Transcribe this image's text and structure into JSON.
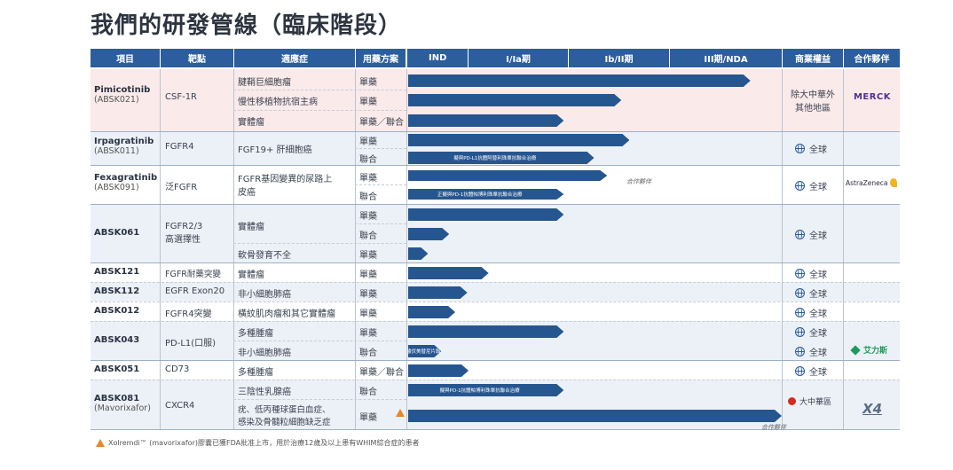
{
  "title": "我們的研發管線（臨床階段）",
  "headers": {
    "item": "項目",
    "target": "靶點",
    "indication": "適應症",
    "regimen": "用藥方案",
    "ind": "IND",
    "p1": "I/Ia期",
    "p2": "Ib/II期",
    "p3": "III期/NDA",
    "rights": "商業權益",
    "partner": "合作夥伴"
  },
  "drugs": [
    {
      "name": "Pimicotinib",
      "code": "(ABSK021)",
      "target": "CSF-1R"
    },
    {
      "name": "Irpagratinib",
      "code": "(ABSK011)",
      "target": "FGFR4"
    },
    {
      "name": "Fexagratinib",
      "code": "(ABSK091)",
      "target": "泛FGFR"
    },
    {
      "name": "ABSK061",
      "code": "",
      "target": "FGFR2/3",
      "target2": "高選擇性"
    },
    {
      "name": "ABSK121",
      "code": "",
      "target": "FGFR耐藥突變"
    },
    {
      "name": "ABSK112",
      "code": "",
      "target": "EGFR Exon20"
    },
    {
      "name": "ABSK012",
      "code": "",
      "target": "FGFR4突變"
    },
    {
      "name": "ABSK043",
      "code": "",
      "target": "PD-L1(口服)"
    },
    {
      "name": "ABSK051",
      "code": "",
      "target": "CD73"
    },
    {
      "name": "ABSK081",
      "code": "(Mavorixafor)",
      "target": "CXCR4"
    }
  ],
  "indications": {
    "pim1": "腱鞘巨細胞瘤",
    "pim2": "慢性移植物抗宿主病",
    "pim3": "實體瘤",
    "irp1": "FGF19+ 肝細胞癌",
    "fex1": "FGFR基因變異的尿路上",
    "fex1b": "皮癌",
    "a061a": "實體瘤",
    "a061b": "軟骨發育不全",
    "a121": "實體瘤",
    "a112": "非小細胞肺癌",
    "a012": "橫紋肌肉瘤和其它實體瘤",
    "a043a": "多種腫瘤",
    "a043b": "非小細胞肺癌",
    "a051": "多種腫瘤",
    "a081a": "三陰性乳腺癌",
    "a081b": "疣、低丙種球蛋白血症、",
    "a081c": "感染及骨髓粒細胞缺乏症"
  },
  "regimens": {
    "mono": "單藥",
    "combo": "聯合",
    "mono_combo": "單藥／聯合"
  },
  "bar_labels": {
    "irp_combo": "擬與PD-L1抗體阿替利珠單抗聯合治療",
    "fex_combo": "正擬與PD-1抗體帕博利珠單抗聯合治療",
    "a043_combo": "艾力斯甲磺酸伏美替尼片聯合治療",
    "a081_combo": "擬與PD-1抗體帕博利珠單抗聯合治療",
    "partner_note": "合作夥伴"
  },
  "rights": {
    "pim": "除大中華外",
    "pim2": "其他地區",
    "global": "全球",
    "greater_china": "大中華區"
  },
  "partners": {
    "merck": "MERCK",
    "az": "AstraZeneca",
    "allist": "艾力斯",
    "x4": "X4"
  },
  "footnote": "Xolremdi™ (mavorixafor)膠囊已獲FDA批准上市，用於治療12歲及以上患有WHIM綜合症的患者",
  "chart_data": {
    "type": "table",
    "phases": [
      "IND",
      "I/Ia期",
      "Ib/II期",
      "III期/NDA"
    ],
    "rows": [
      {
        "drug": "Pimicotinib",
        "indication": "腱鞘巨細胞瘤",
        "regimen": "單藥",
        "phase_progress": 3.72
      },
      {
        "drug": "Pimicotinib",
        "indication": "慢性移植物抗宿主病",
        "regimen": "單藥",
        "phase_progress": 2.52
      },
      {
        "drug": "Pimicotinib",
        "indication": "實體瘤",
        "regimen": "單藥／聯合",
        "phase_progress": 1.95
      },
      {
        "drug": "Irpagratinib",
        "indication": "FGF19+ 肝細胞癌",
        "regimen": "單藥",
        "phase_progress": 2.6
      },
      {
        "drug": "Irpagratinib",
        "indication": "FGF19+ 肝細胞癌",
        "regimen": "聯合",
        "phase_progress": 2.25
      },
      {
        "drug": "Fexagratinib",
        "indication": "FGFR基因變異的尿路上皮癌",
        "regimen": "單藥",
        "phase_progress": 2.38
      },
      {
        "drug": "Fexagratinib",
        "indication": "FGFR基因變異的尿路上皮癌",
        "regimen": "聯合",
        "phase_progress": 1.95
      },
      {
        "drug": "ABSK061",
        "indication": "實體瘤",
        "regimen": "單藥",
        "phase_progress": 1.95
      },
      {
        "drug": "ABSK061",
        "indication": "實體瘤",
        "regimen": "聯合",
        "phase_progress": 0.68
      },
      {
        "drug": "ABSK061",
        "indication": "軟骨發育不全",
        "regimen": "單藥",
        "phase_progress": 0.33
      },
      {
        "drug": "ABSK121",
        "indication": "實體瘤",
        "regimen": "單藥",
        "phase_progress": 1.2
      },
      {
        "drug": "ABSK112",
        "indication": "非小細胞肺癌",
        "regimen": "單藥",
        "phase_progress": 0.98
      },
      {
        "drug": "ABSK012",
        "indication": "橫紋肌肉瘤和其它實體瘤",
        "regimen": "單藥",
        "phase_progress": 0.78
      },
      {
        "drug": "ABSK043",
        "indication": "多種腫瘤",
        "regimen": "單藥",
        "phase_progress": 1.95
      },
      {
        "drug": "ABSK043",
        "indication": "非小細胞肺癌",
        "regimen": "聯合",
        "phase_progress": 0.55
      },
      {
        "drug": "ABSK051",
        "indication": "多種腫瘤",
        "regimen": "單藥／聯合",
        "phase_progress": 1.0
      },
      {
        "drug": "ABSK081",
        "indication": "三陰性乳腺癌",
        "regimen": "聯合",
        "phase_progress": 1.95
      },
      {
        "drug": "ABSK081",
        "indication": "疣、低丙種球蛋白血症、感染及骨髓粒細胞缺乏症",
        "regimen": "單藥",
        "phase_progress": 4.0
      }
    ]
  }
}
